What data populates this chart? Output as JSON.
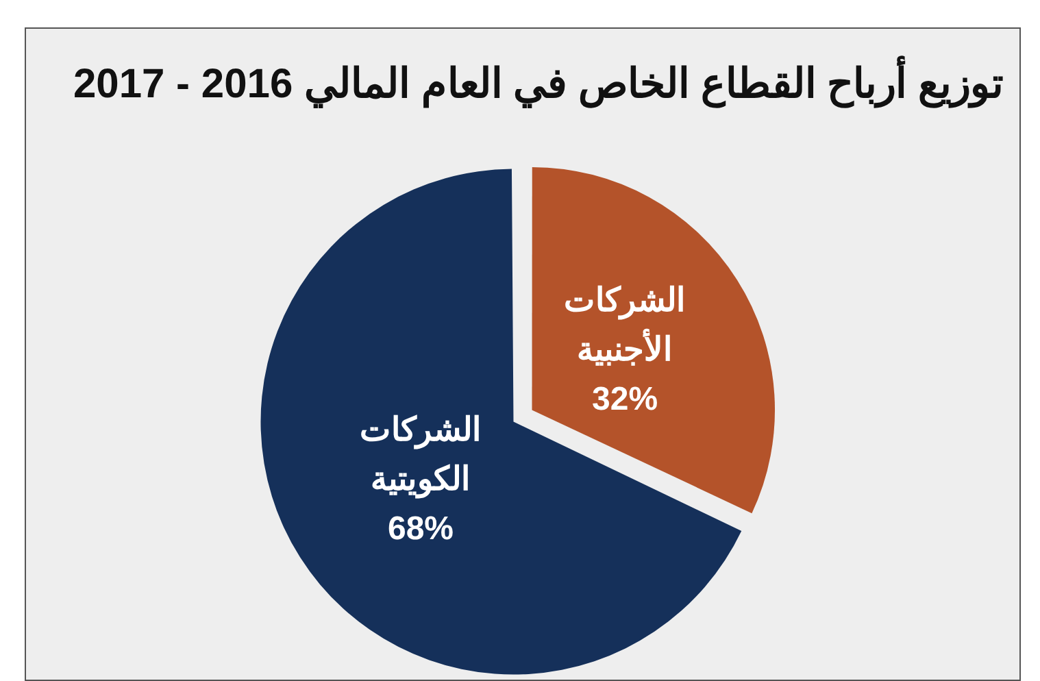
{
  "chart_data": {
    "type": "pie",
    "title": "توزيع أرباح القطاع الخاص في العام المالي 2016 - 2017",
    "categories": [
      "الشركات الأجنبية",
      "الشركات الكويتية"
    ],
    "values": [
      32,
      68
    ],
    "colors": [
      "#b4532a",
      "#15305a"
    ],
    "value_labels": [
      "32%",
      "68%"
    ],
    "legend": false
  }
}
